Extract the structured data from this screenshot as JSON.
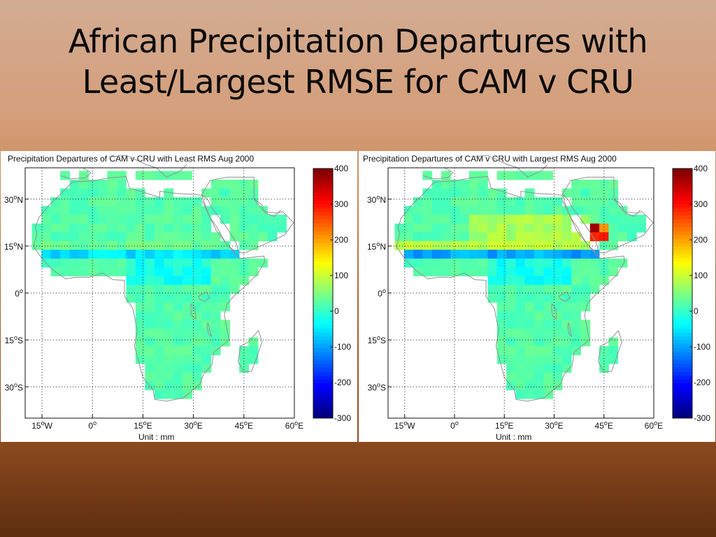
{
  "slide": {
    "title_line1": "African Precipitation Departures with",
    "title_line2": "Least/Largest RMSE for CAM v CRU"
  },
  "panels": [
    {
      "title": "Precipitation Departures of CAM v CRU with Least RMS Aug 2000",
      "unit_label": "Unit : mm"
    },
    {
      "title": "Precipitation Departures of CAM v CRU with Largest RMS Aug 2000",
      "unit_label": "Unit : mm"
    }
  ],
  "map": {
    "lon_ticks": [
      "15°W",
      "0°",
      "15°E",
      "30°E",
      "45°E",
      "60°E"
    ],
    "lat_ticks": [
      "30°N",
      "15°N",
      "0°",
      "15°S",
      "30°S"
    ],
    "lon_values": [
      -15,
      0,
      15,
      30,
      45,
      60
    ],
    "lat_values": [
      30,
      15,
      0,
      -15,
      -30
    ],
    "lon_range": [
      -20,
      60
    ],
    "lat_range": [
      -40,
      40
    ],
    "grid": "dotted"
  },
  "colorbar": {
    "ticks": [
      "400",
      "300",
      "200",
      "100",
      "0",
      "-100",
      "-200",
      "-300"
    ],
    "range": [
      -300,
      400
    ],
    "colormap": "jet"
  },
  "colors": {
    "background": "#d49e7a",
    "coastline": "#909090",
    "ocean": "#ffffff",
    "base_field": "#66f0a8"
  }
}
